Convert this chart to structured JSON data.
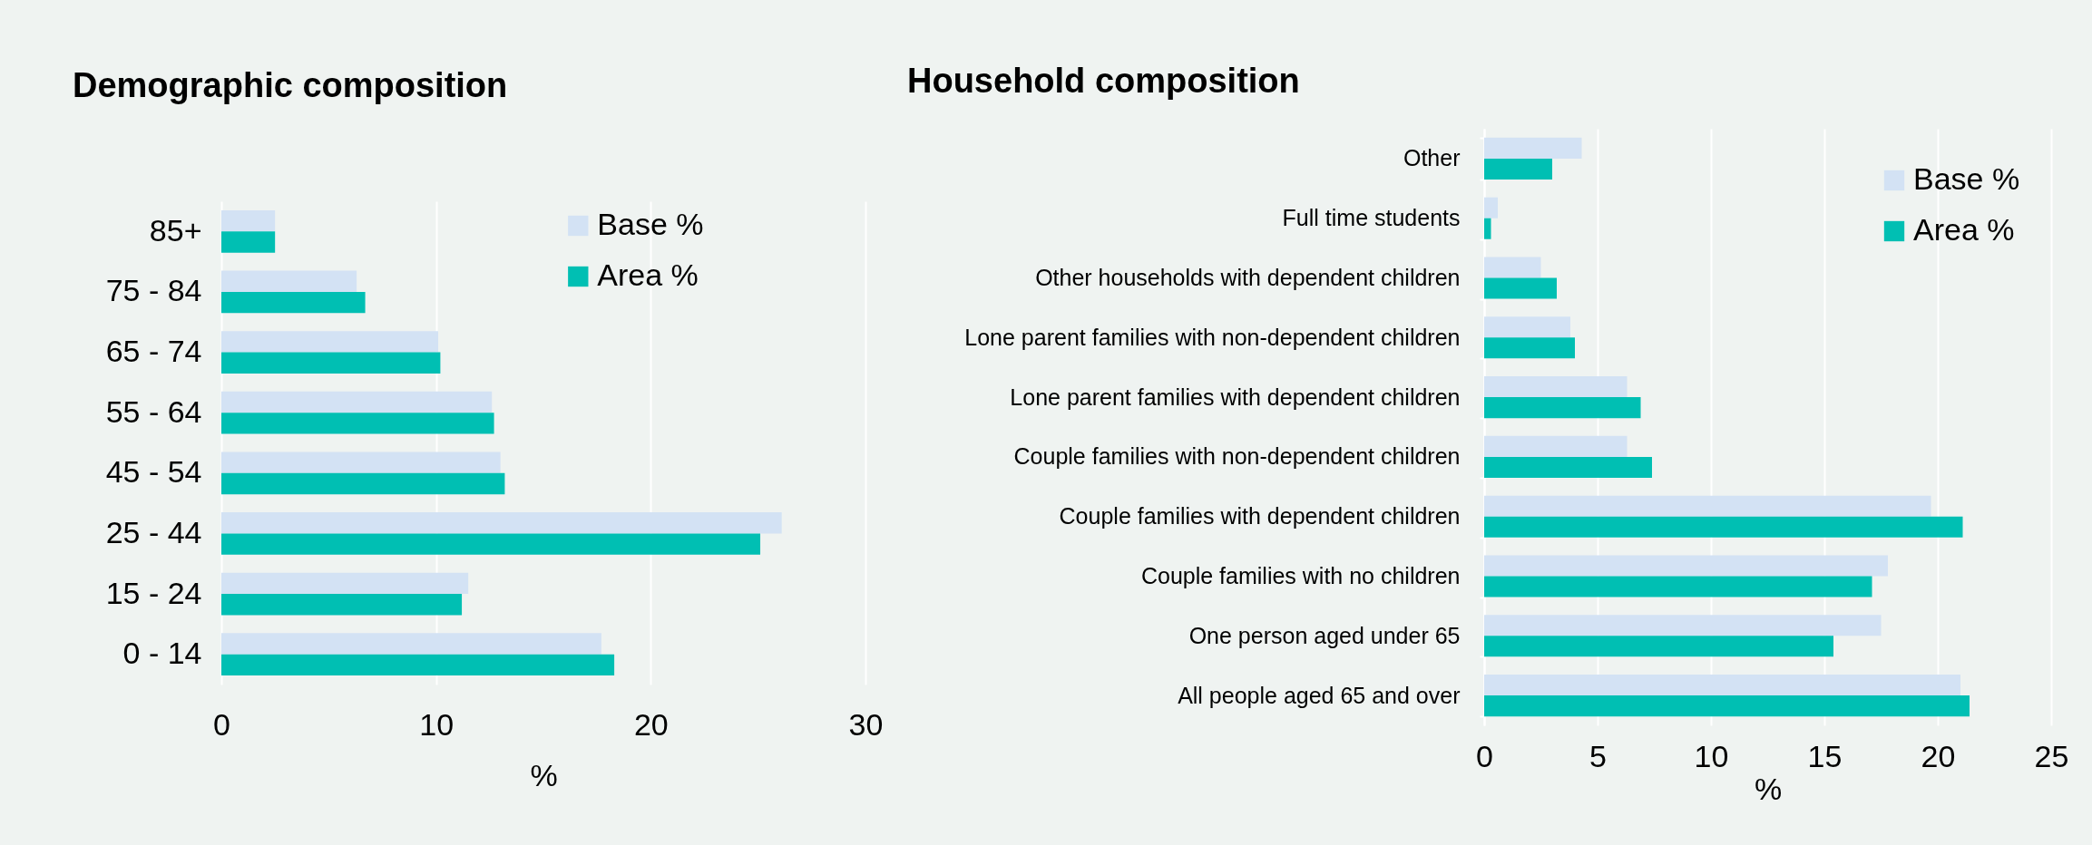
{
  "chart_data": [
    {
      "type": "bar",
      "orientation": "horizontal",
      "title": "Demographic composition",
      "xlabel": "%",
      "categories": [
        "85+",
        "75 - 84",
        "65 - 74",
        "55 - 64",
        "45 - 54",
        "25 - 44",
        "15 - 24",
        "0 - 14"
      ],
      "series": [
        {
          "name": "Base %",
          "color": "#d3e2f4",
          "values": [
            2.5,
            6.3,
            10.1,
            12.6,
            13.0,
            26.1,
            11.5,
            17.7
          ]
        },
        {
          "name": "Area %",
          "color": "#00bfb3",
          "values": [
            2.5,
            6.7,
            10.2,
            12.7,
            13.2,
            25.1,
            11.2,
            18.3
          ]
        }
      ],
      "xlim": [
        0,
        30
      ],
      "xticks": [
        0,
        10,
        20,
        30
      ],
      "grid": "x",
      "legend": "top"
    },
    {
      "type": "bar",
      "orientation": "horizontal",
      "title": "Household composition",
      "xlabel": "%",
      "categories": [
        "Other",
        "Full time students",
        "Other households with dependent children",
        "Lone parent families with non-dependent children",
        "Lone parent families with dependent children",
        "Couple families with non-dependent children",
        "Couple families with dependent children",
        "Couple families with no children",
        "One person aged under 65",
        "All people aged 65 and over"
      ],
      "series": [
        {
          "name": "Base %",
          "color": "#d3e2f4",
          "values": [
            4.3,
            0.6,
            2.5,
            3.8,
            6.3,
            6.3,
            19.7,
            17.8,
            17.5,
            21.0
          ]
        },
        {
          "name": "Area %",
          "color": "#00bfb3",
          "values": [
            3.0,
            0.3,
            3.2,
            4.0,
            6.9,
            7.4,
            21.1,
            17.1,
            15.4,
            21.4
          ]
        }
      ],
      "xlim": [
        0,
        25
      ],
      "xticks": [
        0,
        5,
        10,
        15,
        20,
        25
      ],
      "grid": "x",
      "legend": "top right"
    }
  ]
}
